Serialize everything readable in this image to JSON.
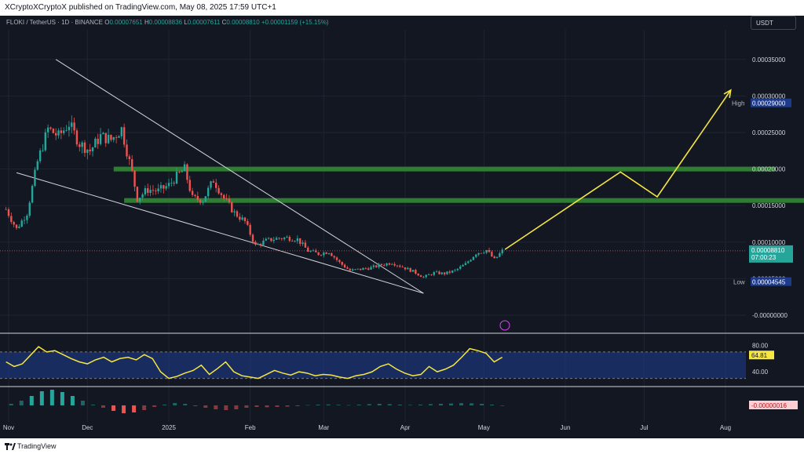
{
  "header": {
    "publisher_text": "XCryptoXCryptoX published on TradingView.com, May 08, 2025 17:59 UTC+1"
  },
  "symbol": {
    "name": "FLOKI / TetherUS · 1D · BINANCE",
    "open_label": "O",
    "open": "0.00007651",
    "high_label": "H",
    "high": "0.00008836",
    "low_label": "L",
    "low": "0.00007611",
    "close_label": "C",
    "close": "0.00008810",
    "change": "+0.00001159 (+15.15%)"
  },
  "currency_button": "USDT",
  "footer": {
    "brand": "TradingView"
  },
  "colors": {
    "background": "#131722",
    "up": "#26a69a",
    "down": "#ef5350",
    "zone": "#2e7d32",
    "projection": "#f5e642",
    "rsi_line": "#f5e642",
    "rsi_band": "#1e3a8a",
    "wedge": "#d1d4dc"
  },
  "chart_data": {
    "type": "candlestick",
    "title": "",
    "price_axis": {
      "ticks": [
        "0.00035000",
        "0.00030000",
        "0.00025000",
        "0.00020000",
        "0.00015000",
        "0.00010000",
        "0.00005000",
        "-0.00000000"
      ],
      "tick_values": [
        0.00035,
        0.0003,
        0.00025,
        0.0002,
        0.00015,
        0.0001,
        5e-05,
        0
      ]
    },
    "time_axis": {
      "ticks": [
        "Nov",
        "Dec",
        "2025",
        "Feb",
        "Mar",
        "Apr",
        "May",
        "Jun",
        "Jul",
        "Aug"
      ],
      "tick_dates": [
        "2024-11-01",
        "2024-12-01",
        "2025-01-01",
        "2025-02-01",
        "2025-03-01",
        "2025-04-01",
        "2025-05-01",
        "2025-06-01",
        "2025-07-01",
        "2025-08-01"
      ]
    },
    "markers": {
      "high_label": "High",
      "high_value": "0.00029000",
      "low_label": "Low",
      "low_value": "0.00004545",
      "last_price": "0.00008810",
      "countdown": "07:00:23"
    },
    "price_path": [
      [
        "2024-10-31",
        0.000145
      ],
      [
        "2024-11-04",
        0.000118
      ],
      [
        "2024-11-08",
        0.00014
      ],
      [
        "2024-11-12",
        0.00021
      ],
      [
        "2024-11-16",
        0.000255
      ],
      [
        "2024-11-20",
        0.000245
      ],
      [
        "2024-11-24",
        0.000262
      ],
      [
        "2024-11-28",
        0.000235
      ],
      [
        "2024-12-02",
        0.000225
      ],
      [
        "2024-12-06",
        0.000245
      ],
      [
        "2024-12-10",
        0.00024
      ],
      [
        "2024-12-14",
        0.000255
      ],
      [
        "2024-12-18",
        0.000195
      ],
      [
        "2024-12-20",
        0.00016
      ],
      [
        "2024-12-24",
        0.000172
      ],
      [
        "2024-12-28",
        0.00017
      ],
      [
        "2025-01-01",
        0.000178
      ],
      [
        "2025-01-04",
        0.00019
      ],
      [
        "2025-01-07",
        0.0002
      ],
      [
        "2025-01-10",
        0.00016
      ],
      [
        "2025-01-14",
        0.000158
      ],
      [
        "2025-01-18",
        0.000185
      ],
      [
        "2025-01-22",
        0.00016
      ],
      [
        "2025-01-26",
        0.00014
      ],
      [
        "2025-01-30",
        0.000128
      ],
      [
        "2025-02-03",
        9.5e-05
      ],
      [
        "2025-02-07",
        0.000102
      ],
      [
        "2025-02-11",
        0.000105
      ],
      [
        "2025-02-15",
        0.000106
      ],
      [
        "2025-02-19",
        0.000104
      ],
      [
        "2025-02-23",
        8.8e-05
      ],
      [
        "2025-02-27",
        8.4e-05
      ],
      [
        "2025-03-03",
        8.7e-05
      ],
      [
        "2025-03-07",
        7.2e-05
      ],
      [
        "2025-03-11",
        6.1e-05
      ],
      [
        "2025-03-15",
        6.3e-05
      ],
      [
        "2025-03-19",
        6.5e-05
      ],
      [
        "2025-03-23",
        6.9e-05
      ],
      [
        "2025-03-27",
        7.2e-05
      ],
      [
        "2025-03-31",
        6.6e-05
      ],
      [
        "2025-04-04",
        6e-05
      ],
      [
        "2025-04-08",
        5.2e-05
      ],
      [
        "2025-04-12",
        5.8e-05
      ],
      [
        "2025-04-16",
        5.7e-05
      ],
      [
        "2025-04-20",
        6.1e-05
      ],
      [
        "2025-04-24",
        7e-05
      ],
      [
        "2025-04-28",
        8.5e-05
      ],
      [
        "2025-05-02",
        8.9e-05
      ],
      [
        "2025-05-05",
        7.6e-05
      ],
      [
        "2025-05-08",
        8.8e-05
      ]
    ],
    "support_zones": [
      {
        "start": "2024-12-11",
        "end": "2025-08-20",
        "value": 0.0002
      },
      {
        "start": "2024-12-15",
        "end": "2025-08-31",
        "value": 0.000157
      }
    ],
    "wedge_lines": [
      [
        [
          "2024-11-19",
          0.00035
        ],
        [
          "2025-04-08",
          3e-05
        ]
      ],
      [
        [
          "2024-11-04",
          0.000195
        ],
        [
          "2025-04-08",
          3e-05
        ]
      ]
    ],
    "projection_path": [
      [
        "2025-05-09",
        9e-05
      ],
      [
        "2025-06-22",
        0.000196
      ],
      [
        "2025-07-06",
        0.000162
      ],
      [
        "2025-08-03",
        0.000308
      ]
    ],
    "rsi": {
      "upper_label": "80.00",
      "lower_label": "40.00",
      "current": "64.81",
      "band": [
        30,
        70
      ],
      "values": [
        55,
        48,
        52,
        65,
        78,
        70,
        72,
        66,
        60,
        55,
        52,
        58,
        62,
        55,
        60,
        62,
        58,
        66,
        60,
        40,
        30,
        33,
        38,
        42,
        50,
        36,
        45,
        55,
        40,
        34,
        32,
        30,
        36,
        42,
        38,
        35,
        40,
        38,
        34,
        36,
        35,
        32,
        30,
        34,
        36,
        40,
        48,
        52,
        44,
        38,
        34,
        36,
        48,
        40,
        44,
        50,
        62,
        75,
        72,
        68,
        55,
        62
      ]
    },
    "macd": {
      "current": "-0.00000016",
      "values": [
        0.1,
        0.3,
        0.6,
        0.9,
        1.0,
        0.85,
        0.6,
        0.3,
        0.05,
        -0.15,
        -0.35,
        -0.5,
        -0.45,
        -0.3,
        -0.1,
        0.05,
        0.15,
        0.1,
        -0.05,
        -0.15,
        -0.25,
        -0.3,
        -0.25,
        -0.15,
        -0.1,
        -0.12,
        -0.1,
        -0.08,
        -0.05,
        0.02,
        0.05,
        0.06,
        0.04,
        0.02,
        0.05,
        0.08,
        0.1,
        0.08,
        0.05,
        0.03,
        0.05,
        0.08,
        0.1,
        0.12,
        0.14,
        0.13,
        0.1,
        0.05,
        -0.02
      ]
    }
  }
}
